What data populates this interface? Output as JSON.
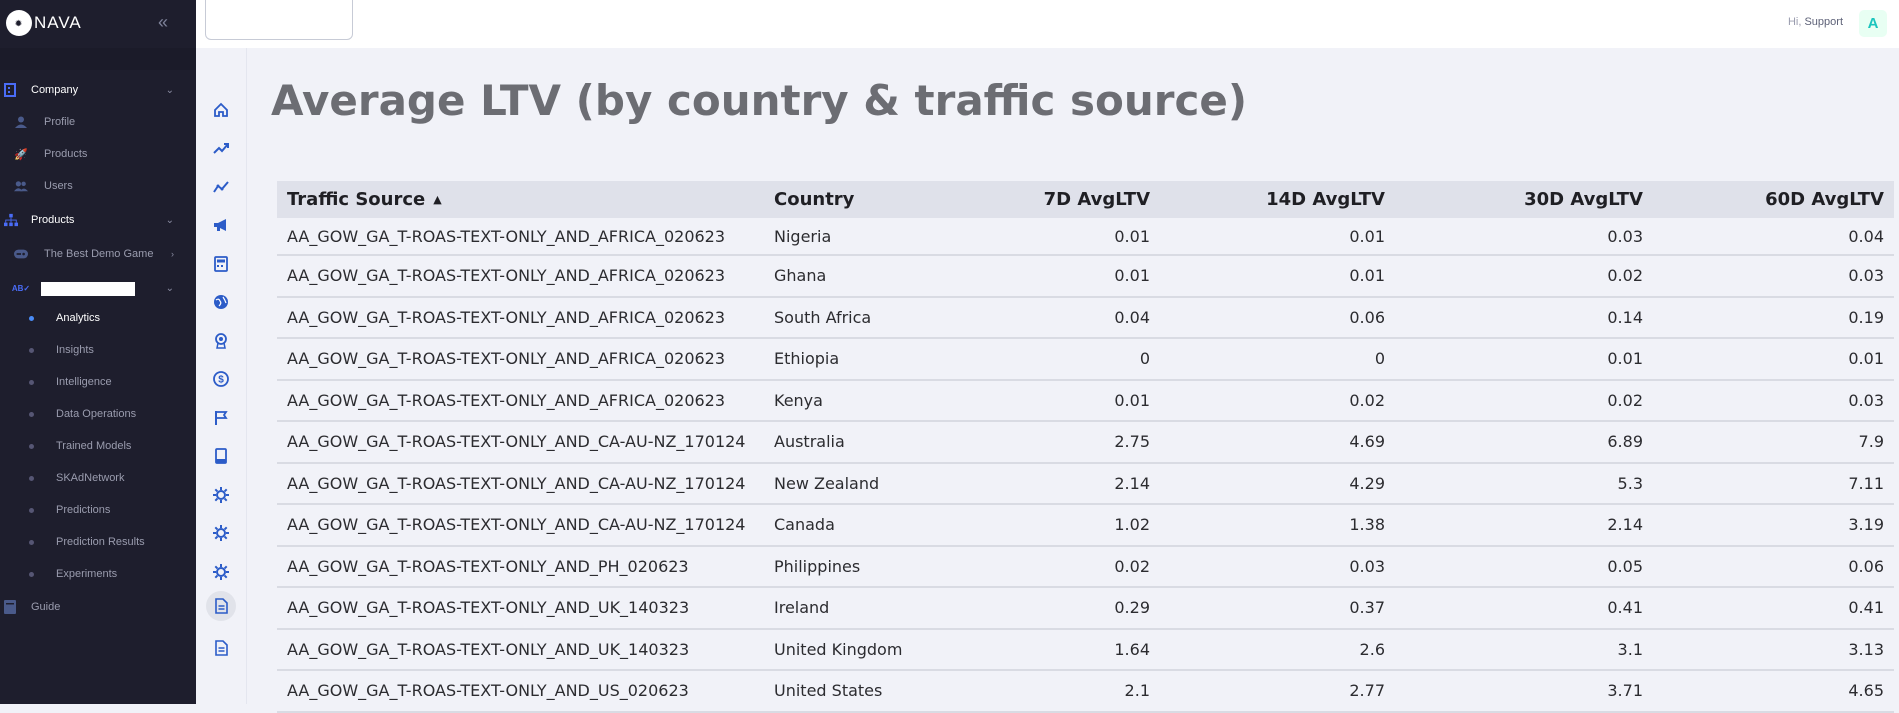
{
  "brand": {
    "name": "NAVA",
    "mark_text": "NAVA"
  },
  "header": {
    "greeting": "Hi,",
    "user": "Support",
    "avatar_letter": "A"
  },
  "sidebar": {
    "items": [
      {
        "label": "Company"
      },
      {
        "label": "Profile"
      },
      {
        "label": "Products"
      },
      {
        "label": "Users"
      },
      {
        "label": "Products"
      },
      {
        "label": "The Best Demo Game"
      },
      {
        "label": "Analytics"
      },
      {
        "label": "Insights"
      },
      {
        "label": "Intelligence"
      },
      {
        "label": "Data Operations"
      },
      {
        "label": "Trained Models"
      },
      {
        "label": "SKAdNetwork"
      },
      {
        "label": "Predictions"
      },
      {
        "label": "Prediction Results"
      },
      {
        "label": "Experiments"
      },
      {
        "label": "Guide"
      }
    ]
  },
  "main": {
    "title": "Average LTV (by country & traffic source)",
    "columns": [
      "Traffic Source",
      "Country",
      "7D AvgLTV",
      "14D AvgLTV",
      "30D AvgLTV",
      "60D AvgLTV"
    ],
    "rows": [
      [
        "AA_GOW_GA_T-ROAS-TEXT-ONLY_AND_AFRICA_020623",
        "Nigeria",
        "0.01",
        "0.01",
        "0.03",
        "0.04"
      ],
      [
        "AA_GOW_GA_T-ROAS-TEXT-ONLY_AND_AFRICA_020623",
        "Ghana",
        "0.01",
        "0.01",
        "0.02",
        "0.03"
      ],
      [
        "AA_GOW_GA_T-ROAS-TEXT-ONLY_AND_AFRICA_020623",
        "South Africa",
        "0.04",
        "0.06",
        "0.14",
        "0.19"
      ],
      [
        "AA_GOW_GA_T-ROAS-TEXT-ONLY_AND_AFRICA_020623",
        "Ethiopia",
        "0",
        "0",
        "0.01",
        "0.01"
      ],
      [
        "AA_GOW_GA_T-ROAS-TEXT-ONLY_AND_AFRICA_020623",
        "Kenya",
        "0.01",
        "0.02",
        "0.02",
        "0.03"
      ],
      [
        "AA_GOW_GA_T-ROAS-TEXT-ONLY_AND_CA-AU-NZ_170124",
        "Australia",
        "2.75",
        "4.69",
        "6.89",
        "7.9"
      ],
      [
        "AA_GOW_GA_T-ROAS-TEXT-ONLY_AND_CA-AU-NZ_170124",
        "New Zealand",
        "2.14",
        "4.29",
        "5.3",
        "7.11"
      ],
      [
        "AA_GOW_GA_T-ROAS-TEXT-ONLY_AND_CA-AU-NZ_170124",
        "Canada",
        "1.02",
        "1.38",
        "2.14",
        "3.19"
      ],
      [
        "AA_GOW_GA_T-ROAS-TEXT-ONLY_AND_PH_020623",
        "Philippines",
        "0.02",
        "0.03",
        "0.05",
        "0.06"
      ],
      [
        "AA_GOW_GA_T-ROAS-TEXT-ONLY_AND_UK_140323",
        "Ireland",
        "0.29",
        "0.37",
        "0.41",
        "0.41"
      ],
      [
        "AA_GOW_GA_T-ROAS-TEXT-ONLY_AND_UK_140323",
        "United Kingdom",
        "1.64",
        "2.6",
        "3.1",
        "3.13"
      ],
      [
        "AA_GOW_GA_T-ROAS-TEXT-ONLY_AND_US_020623",
        "United States",
        "2.1",
        "2.77",
        "3.71",
        "4.65"
      ]
    ]
  },
  "colors": {
    "sidebar_bg": "#1e1e2d",
    "accent": "#4a6cf7",
    "header_bg": "#dfe1ea",
    "avatar": "#1bc5bd"
  },
  "icons": [
    "home-icon",
    "trend-up-icon",
    "chart-line-icon",
    "megaphone-icon",
    "calculator-icon",
    "globe-icon",
    "badge-icon",
    "dollar-icon",
    "flag-icon",
    "clipboard-icon",
    "gear-icon",
    "gear-icon",
    "gear-icon",
    "document-icon",
    "document-icon"
  ]
}
